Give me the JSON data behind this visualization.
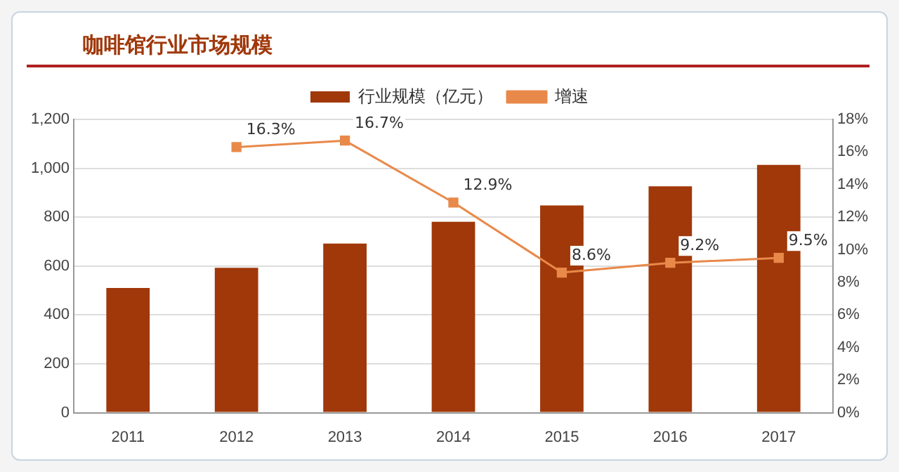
{
  "chart_data": {
    "type": "bar",
    "title": "咖啡馆行业市场规模",
    "categories": [
      "2011",
      "2012",
      "2013",
      "2014",
      "2015",
      "2016",
      "2017"
    ],
    "series": [
      {
        "name": "行业规模（亿元）",
        "color": "#a0380a",
        "values": [
          510,
          593,
          692,
          781,
          848,
          926,
          1014
        ]
      },
      {
        "name": "增速",
        "type": "line",
        "axis": "y2",
        "color": "#e8894a",
        "marker": "square",
        "values": [
          null,
          16.3,
          16.7,
          12.9,
          8.6,
          9.2,
          9.5
        ],
        "value_labels": [
          null,
          "16.3%",
          "16.7%",
          "12.9%",
          "8.6%",
          "9.2%",
          "9.5%"
        ]
      }
    ],
    "ylim": [
      0,
      1200
    ],
    "yticks": [
      0,
      200,
      400,
      600,
      800,
      {
        "value": 1000,
        "label": "1,000"
      },
      {
        "value": 1200,
        "label": "1,200"
      }
    ],
    "y2lim": [
      0,
      18
    ],
    "y2ticks": [
      {
        "value": 0,
        "label": "0%"
      },
      {
        "value": 2,
        "label": "2%"
      },
      {
        "value": 4,
        "label": "4%"
      },
      {
        "value": 6,
        "label": "6%"
      },
      {
        "value": 8,
        "label": "8%"
      },
      {
        "value": 10,
        "label": "10%"
      },
      {
        "value": 12,
        "label": "12%"
      },
      {
        "value": 14,
        "label": "14%"
      },
      {
        "value": 16,
        "label": "16%"
      },
      {
        "value": 18,
        "label": "18%"
      }
    ],
    "grid": "y",
    "legend": "top"
  }
}
